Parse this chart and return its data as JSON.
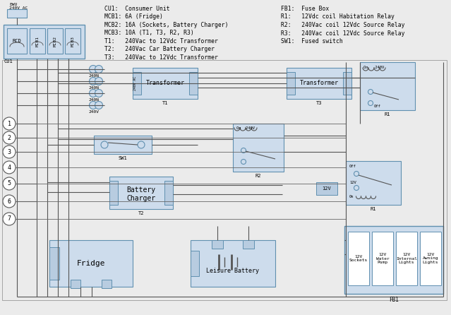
{
  "bg_color": "#ebebeb",
  "box_fill": "#cddcec",
  "box_edge": "#6090b0",
  "line_color": "#555555",
  "legend_left": [
    "CU1:  Consumer Unit",
    "MCB1: 6A (Fridge)",
    "MCB2: 16A (Sockets, Battery Charger)",
    "MCB3: 10A (T1, T3, R2, R3)",
    "T1:   240Vac to 12Vdc Transformer",
    "T2:   240Vac Car Battery Charger",
    "T3:   240Vac to 12Vdc Transformer"
  ],
  "legend_right": [
    "FB1:  Fuse Box",
    "R1:   12Vdc coil Habitation Relay",
    "R2:   240Vac coil 12Vdc Source Relay",
    "R3:   240Vac coil 12Vdc Source Relay",
    "SW1:  Fused switch"
  ]
}
